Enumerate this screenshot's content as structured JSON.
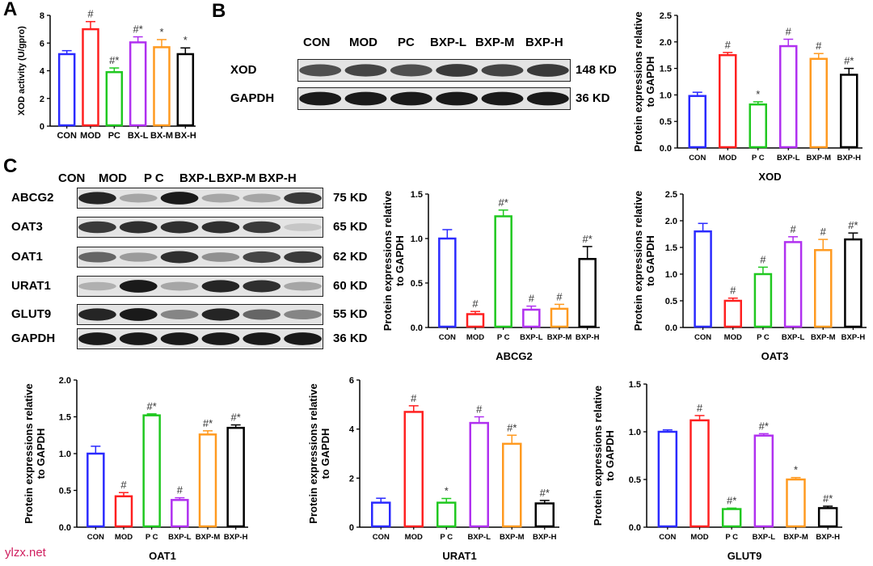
{
  "panels": {
    "a": "A",
    "b": "B",
    "c": "C"
  },
  "colors": [
    "#2a2aff",
    "#ff2020",
    "#20c820",
    "#b030f0",
    "#ff9a20",
    "#000000"
  ],
  "blot_b": {
    "lanes": [
      "CON",
      "MOD",
      "PC",
      "BXP-L",
      "BXP-M",
      "BXP-H"
    ],
    "rows": [
      {
        "label": "XOD",
        "kd": "148 KD",
        "intensity": [
          0.7,
          0.75,
          0.7,
          0.8,
          0.75,
          0.8
        ]
      },
      {
        "label": "GAPDH",
        "kd": "36 KD",
        "intensity": [
          0.95,
          0.95,
          0.95,
          0.95,
          0.95,
          0.95
        ]
      }
    ]
  },
  "blot_c": {
    "lanes": [
      "CON",
      "MOD",
      "P C",
      "BXP-L",
      "BXP-M",
      "BXP-H"
    ],
    "rows": [
      {
        "label": "ABCG2",
        "kd": "75 KD",
        "intensity": [
          0.9,
          0.3,
          0.95,
          0.3,
          0.3,
          0.8
        ]
      },
      {
        "label": "OAT3",
        "kd": "65 KD",
        "intensity": [
          0.8,
          0.85,
          0.85,
          0.85,
          0.8,
          0.15
        ]
      },
      {
        "label": "OAT1",
        "kd": "62 KD",
        "intensity": [
          0.6,
          0.35,
          0.85,
          0.4,
          0.75,
          0.8
        ]
      },
      {
        "label": "URAT1",
        "kd": "60 KD",
        "intensity": [
          0.25,
          0.95,
          0.3,
          0.9,
          0.85,
          0.3
        ]
      },
      {
        "label": "GLUT9",
        "kd": "55 KD",
        "intensity": [
          0.9,
          0.95,
          0.45,
          0.9,
          0.6,
          0.45
        ]
      },
      {
        "label": "GAPDH",
        "kd": "36 KD",
        "intensity": [
          0.95,
          0.95,
          0.95,
          0.95,
          0.95,
          0.95
        ]
      }
    ]
  },
  "chart_data": [
    {
      "type": "bar",
      "id": "xod-activity",
      "title": "",
      "xlabel": "",
      "ylabel": [
        "XOD activity (U/gpro)"
      ],
      "categories": [
        "CON",
        "MOD",
        "PC",
        "BX-L",
        "BX-M",
        "BX-H"
      ],
      "values": [
        5.2,
        7.0,
        3.9,
        6.05,
        5.7,
        5.2
      ],
      "errors": [
        0.25,
        0.55,
        0.3,
        0.4,
        0.55,
        0.45
      ],
      "annotations": [
        "",
        "#",
        "#*",
        "#*",
        "*",
        "*"
      ],
      "ylim": [
        0,
        8
      ],
      "yticks": [
        "0",
        "2",
        "4",
        "6",
        "8"
      ]
    },
    {
      "type": "bar",
      "id": "xod-protein",
      "xlabel": "XOD",
      "ylabel": [
        "Protein expressions relative",
        "to GAPDH"
      ],
      "categories": [
        "CON",
        "MOD",
        "P C",
        "BXP-L",
        "BXP-M",
        "BXP-H"
      ],
      "values": [
        0.98,
        1.75,
        0.82,
        1.92,
        1.68,
        1.38
      ],
      "errors": [
        0.07,
        0.05,
        0.05,
        0.13,
        0.1,
        0.12
      ],
      "annotations": [
        "",
        "#",
        "*",
        "#",
        "#",
        "#*"
      ],
      "ylim": [
        0,
        2.5
      ],
      "yticks": [
        "0.0",
        "0.5",
        "1.0",
        "1.5",
        "2.0",
        "2.5"
      ]
    },
    {
      "type": "bar",
      "id": "abcg2",
      "xlabel": "ABCG2",
      "ylabel": [
        "Protein expressions relative",
        "to GAPDH"
      ],
      "categories": [
        "CON",
        "MOD",
        "P C",
        "BXP-L",
        "BXP-M",
        "BXP-H"
      ],
      "values": [
        1.0,
        0.15,
        1.25,
        0.2,
        0.21,
        0.77
      ],
      "errors": [
        0.1,
        0.03,
        0.07,
        0.04,
        0.05,
        0.14
      ],
      "annotations": [
        "",
        "#",
        "#*",
        "#",
        "#",
        "#*"
      ],
      "ylim": [
        0,
        1.5
      ],
      "yticks": [
        "0.0",
        "0.5",
        "1.0",
        "1.5"
      ]
    },
    {
      "type": "bar",
      "id": "oat3",
      "xlabel": "OAT3",
      "ylabel": [
        "Protein expressions relative",
        "to GAPDH"
      ],
      "categories": [
        "CON",
        "MOD",
        "P C",
        "BXP-L",
        "BXP-M",
        "BXP-H"
      ],
      "values": [
        1.8,
        0.5,
        1.0,
        1.6,
        1.45,
        1.65
      ],
      "errors": [
        0.15,
        0.05,
        0.13,
        0.1,
        0.2,
        0.12
      ],
      "annotations": [
        "",
        "#",
        "#",
        "#",
        "#",
        "#*"
      ],
      "ylim": [
        0,
        2.5
      ],
      "yticks": [
        "0.0",
        "0.5",
        "1.0",
        "1.5",
        "2.0",
        "2.5"
      ]
    },
    {
      "type": "bar",
      "id": "oat1",
      "xlabel": "OAT1",
      "ylabel": [
        "Protein expressions relative",
        "to GAPDH"
      ],
      "categories": [
        "CON",
        "MOD",
        "P C",
        "BXP-L",
        "BXP-M",
        "BXP-H"
      ],
      "values": [
        1.0,
        0.42,
        1.52,
        0.37,
        1.26,
        1.35
      ],
      "errors": [
        0.1,
        0.05,
        0.02,
        0.03,
        0.05,
        0.04
      ],
      "annotations": [
        "",
        "#",
        "#*",
        "#",
        "#*",
        "#*"
      ],
      "ylim": [
        0,
        2.0
      ],
      "yticks": [
        "0.0",
        "0.5",
        "1.0",
        "1.5",
        "2.0"
      ]
    },
    {
      "type": "bar",
      "id": "urat1",
      "xlabel": "URAT1",
      "ylabel": [
        "Protein expressions relative",
        "to GAPDH"
      ],
      "categories": [
        "CON",
        "MOD",
        "P C",
        "BXP-L",
        "BXP-M",
        "BXP-H"
      ],
      "values": [
        1.0,
        4.7,
        1.0,
        4.25,
        3.4,
        0.97
      ],
      "errors": [
        0.18,
        0.25,
        0.17,
        0.25,
        0.35,
        0.12
      ],
      "annotations": [
        "",
        "#",
        "*",
        "#",
        "#*",
        "#*"
      ],
      "ylim": [
        0,
        6
      ],
      "yticks": [
        "0",
        "2",
        "4",
        "6"
      ]
    },
    {
      "type": "bar",
      "id": "glut9",
      "xlabel": "GLUT9",
      "ylabel": [
        "Protein expressions relative",
        "to GAPDH"
      ],
      "categories": [
        "CON",
        "MOD",
        "P C",
        "BXP-L",
        "BXP-M",
        "BXP-H"
      ],
      "values": [
        1.0,
        1.12,
        0.19,
        0.96,
        0.5,
        0.2
      ],
      "errors": [
        0.02,
        0.05,
        0.01,
        0.02,
        0.02,
        0.02
      ],
      "annotations": [
        "",
        "#",
        "#*",
        "#*",
        "*",
        "#*"
      ],
      "ylim": [
        0,
        1.5
      ],
      "yticks": [
        "0.0",
        "0.5",
        "1.0",
        "1.5"
      ]
    }
  ],
  "watermark": "ylzx.net"
}
